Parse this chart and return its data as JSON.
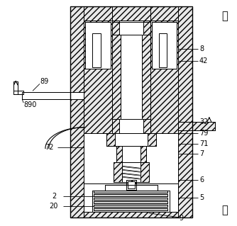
{
  "bg_color": "#ffffff",
  "fig_width": 3.34,
  "fig_height": 3.19,
  "dpi": 100,
  "labels": {
    "hou": "后",
    "qian": "前",
    "n8": "8",
    "n42": "42",
    "n32": "32",
    "n79": "79",
    "n71": "71",
    "n7": "7",
    "n6": "6",
    "n5": "5",
    "n9": "9",
    "n2": "2",
    "n20": "20",
    "n72": "72",
    "n89": "89",
    "n890": "890"
  },
  "hatch_fc": "#e8e8e8",
  "hatch_style": "////",
  "annotation_fontsize": 7.0,
  "label_fontsize": 10.5
}
